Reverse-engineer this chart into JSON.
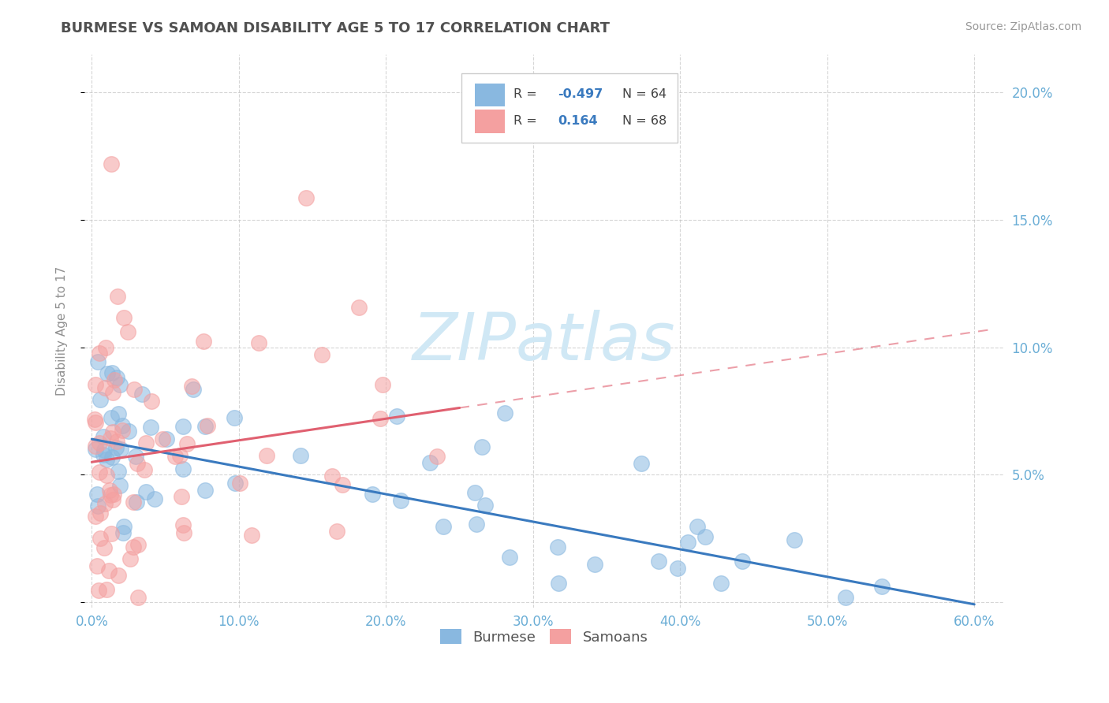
{
  "title": "BURMESE VS SAMOAN DISABILITY AGE 5 TO 17 CORRELATION CHART",
  "source": "Source: ZipAtlas.com",
  "ylabel": "Disability Age 5 to 17",
  "xlim": [
    -0.005,
    0.62
  ],
  "ylim": [
    -0.002,
    0.215
  ],
  "yticks": [
    0.0,
    0.05,
    0.1,
    0.15,
    0.2
  ],
  "ytick_labels": [
    "",
    "5.0%",
    "10.0%",
    "15.0%",
    "20.0%"
  ],
  "xticks": [
    0.0,
    0.1,
    0.2,
    0.3,
    0.4,
    0.5,
    0.6
  ],
  "xtick_labels": [
    "0.0%",
    "10.0%",
    "20.0%",
    "30.0%",
    "40.0%",
    "50.0%",
    "60.0%"
  ],
  "burmese_R": -0.497,
  "burmese_N": 64,
  "samoan_R": 0.164,
  "samoan_N": 68,
  "burmese_color": "#89b8e0",
  "samoan_color": "#f4a0a0",
  "trend_burmese_color": "#3a7abf",
  "trend_samoan_color": "#e06070",
  "background_color": "#ffffff",
  "grid_color": "#bbbbbb",
  "title_color": "#505050",
  "axis_label_color": "#6baed6",
  "ylabel_color": "#909090",
  "watermark_color": "#d0e8f5",
  "legend_R_color": "#3a7abf",
  "burmese_trend_intercept": 0.064,
  "burmese_trend_slope": -0.108,
  "samoan_trend_intercept": 0.055,
  "samoan_trend_slope": 0.085
}
